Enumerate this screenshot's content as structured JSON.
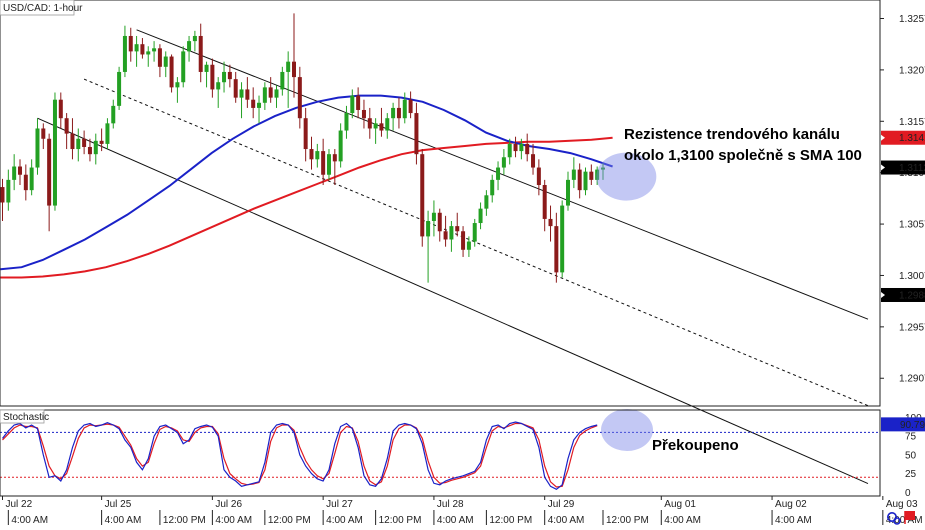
{
  "chart_data": [
    {
      "type": "candlestick",
      "title": "USD/CAD: 1-hour",
      "ylim": [
        1.288,
        1.3275
      ],
      "y_ticks": [
        "1.3257",
        "1.3207",
        "1.3157",
        "1.3107",
        "1.3057",
        "1.3007",
        "1.2957",
        "1.2907"
      ],
      "price_tags": [
        {
          "label": "1.3141",
          "value": 1.3141,
          "color": "#e11b22",
          "text_color": "#ffffff"
        },
        {
          "label": "1.3112",
          "value": 1.3112,
          "color": "#000000",
          "text_color": "#ffffff"
        },
        {
          "label": "1.2988",
          "value": 1.2988,
          "color": "#000000",
          "text_color": "#ffffff"
        }
      ],
      "candles": [
        [
          1.3093,
          1.3101,
          1.306,
          1.3078
        ],
        [
          1.3078,
          1.311,
          1.307,
          1.31
        ],
        [
          1.31,
          1.3125,
          1.309,
          1.3113
        ],
        [
          1.3113,
          1.312,
          1.3095,
          1.3105
        ],
        [
          1.3105,
          1.3115,
          1.308,
          1.309
        ],
        [
          1.309,
          1.312,
          1.3085,
          1.3112
        ],
        [
          1.3112,
          1.316,
          1.3105,
          1.315
        ],
        [
          1.315,
          1.3155,
          1.313,
          1.314
        ],
        [
          1.314,
          1.3145,
          1.305,
          1.3075
        ],
        [
          1.3075,
          1.3185,
          1.307,
          1.3178
        ],
        [
          1.3178,
          1.3185,
          1.315,
          1.316
        ],
        [
          1.316,
          1.3165,
          1.313,
          1.3145
        ],
        [
          1.3145,
          1.316,
          1.312,
          1.313
        ],
        [
          1.313,
          1.315,
          1.3118,
          1.314
        ],
        [
          1.314,
          1.3148,
          1.3125,
          1.3132
        ],
        [
          1.3132,
          1.314,
          1.3118,
          1.3125
        ],
        [
          1.3125,
          1.3145,
          1.3115,
          1.3138
        ],
        [
          1.3138,
          1.315,
          1.3128,
          1.3135
        ],
        [
          1.3135,
          1.316,
          1.313,
          1.3155
        ],
        [
          1.3155,
          1.3178,
          1.315,
          1.3172
        ],
        [
          1.3172,
          1.321,
          1.3168,
          1.3205
        ],
        [
          1.3205,
          1.325,
          1.32,
          1.324
        ],
        [
          1.324,
          1.3248,
          1.3215,
          1.3225
        ],
        [
          1.3225,
          1.324,
          1.321,
          1.3232
        ],
        [
          1.3232,
          1.3238,
          1.3218,
          1.3222
        ],
        [
          1.3222,
          1.323,
          1.321,
          1.3225
        ],
        [
          1.3225,
          1.3235,
          1.3215,
          1.3228
        ],
        [
          1.3228,
          1.3232,
          1.32,
          1.321
        ],
        [
          1.321,
          1.3225,
          1.32,
          1.322
        ],
        [
          1.322,
          1.3222,
          1.3185,
          1.319
        ],
        [
          1.319,
          1.32,
          1.3175,
          1.3195
        ],
        [
          1.3195,
          1.323,
          1.319,
          1.3225
        ],
        [
          1.3225,
          1.324,
          1.3215,
          1.3235
        ],
        [
          1.3235,
          1.3245,
          1.3225,
          1.324
        ],
        [
          1.324,
          1.3252,
          1.3195,
          1.3205
        ],
        [
          1.3205,
          1.3215,
          1.319,
          1.3212
        ],
        [
          1.3212,
          1.3218,
          1.318,
          1.3188
        ],
        [
          1.3188,
          1.32,
          1.317,
          1.3195
        ],
        [
          1.3195,
          1.3215,
          1.3185,
          1.3205
        ],
        [
          1.3205,
          1.3212,
          1.319,
          1.3198
        ],
        [
          1.3198,
          1.3205,
          1.3175,
          1.318
        ],
        [
          1.318,
          1.3195,
          1.316,
          1.3188
        ],
        [
          1.3188,
          1.32,
          1.317,
          1.3178
        ],
        [
          1.3178,
          1.319,
          1.316,
          1.317
        ],
        [
          1.317,
          1.3182,
          1.3155,
          1.3175
        ],
        [
          1.3175,
          1.3195,
          1.3168,
          1.319
        ],
        [
          1.319,
          1.32,
          1.3175,
          1.318
        ],
        [
          1.318,
          1.3192,
          1.317,
          1.3188
        ],
        [
          1.3188,
          1.321,
          1.3182,
          1.3205
        ],
        [
          1.3205,
          1.3225,
          1.317,
          1.3215
        ],
        [
          1.3215,
          1.3262,
          1.318,
          1.32
        ],
        [
          1.32,
          1.321,
          1.315,
          1.316
        ],
        [
          1.316,
          1.317,
          1.3118,
          1.313
        ],
        [
          1.313,
          1.3142,
          1.311,
          1.312
        ],
        [
          1.312,
          1.3135,
          1.3112,
          1.3128
        ],
        [
          1.3128,
          1.314,
          1.3095,
          1.3105
        ],
        [
          1.3105,
          1.313,
          1.31,
          1.3125
        ],
        [
          1.3125,
          1.313,
          1.3095,
          1.3118
        ],
        [
          1.3118,
          1.3155,
          1.3112,
          1.3148
        ],
        [
          1.3148,
          1.3172,
          1.314,
          1.3165
        ],
        [
          1.3165,
          1.3188,
          1.316,
          1.3182
        ],
        [
          1.3182,
          1.319,
          1.316,
          1.3168
        ],
        [
          1.3168,
          1.3178,
          1.315,
          1.316
        ],
        [
          1.316,
          1.317,
          1.314,
          1.315
        ],
        [
          1.315,
          1.316,
          1.3135,
          1.3155
        ],
        [
          1.3155,
          1.317,
          1.3142,
          1.3148
        ],
        [
          1.3148,
          1.3165,
          1.314,
          1.316
        ],
        [
          1.316,
          1.3175,
          1.3148,
          1.317
        ],
        [
          1.317,
          1.318,
          1.315,
          1.316
        ],
        [
          1.316,
          1.3185,
          1.3155,
          1.3178
        ],
        [
          1.3178,
          1.3186,
          1.316,
          1.3165
        ],
        [
          1.3165,
          1.3175,
          1.3115,
          1.3125
        ],
        [
          1.3125,
          1.313,
          1.3035,
          1.3045
        ],
        [
          1.3045,
          1.307,
          1.3,
          1.306
        ],
        [
          1.306,
          1.308,
          1.3045,
          1.3068
        ],
        [
          1.3068,
          1.3072,
          1.304,
          1.305
        ],
        [
          1.305,
          1.3065,
          1.3035,
          1.3042
        ],
        [
          1.3042,
          1.306,
          1.303,
          1.3055
        ],
        [
          1.3055,
          1.3068,
          1.3045,
          1.305
        ],
        [
          1.305,
          1.3055,
          1.3025,
          1.3032
        ],
        [
          1.3032,
          1.3045,
          1.3025,
          1.304
        ],
        [
          1.304,
          1.3062,
          1.3035,
          1.3058
        ],
        [
          1.3058,
          1.3078,
          1.3052,
          1.3072
        ],
        [
          1.3072,
          1.309,
          1.3065,
          1.3085
        ],
        [
          1.3085,
          1.3105,
          1.3078,
          1.31
        ],
        [
          1.31,
          1.3118,
          1.309,
          1.3112
        ],
        [
          1.3112,
          1.313,
          1.3105,
          1.3122
        ],
        [
          1.3122,
          1.314,
          1.3115,
          1.3135
        ],
        [
          1.3135,
          1.3142,
          1.3122,
          1.3128
        ],
        [
          1.3128,
          1.314,
          1.312,
          1.3135
        ],
        [
          1.3135,
          1.3145,
          1.3118,
          1.3125
        ],
        [
          1.3125,
          1.3135,
          1.3105,
          1.3112
        ],
        [
          1.3112,
          1.312,
          1.3085,
          1.3095
        ],
        [
          1.3095,
          1.31,
          1.305,
          1.3062
        ],
        [
          1.3062,
          1.3075,
          1.304,
          1.3055
        ],
        [
          1.3055,
          1.3068,
          1.3,
          1.301
        ],
        [
          1.301,
          1.308,
          1.3005,
          1.3075
        ],
        [
          1.3075,
          1.3108,
          1.307,
          1.31
        ],
        [
          1.31,
          1.3122,
          1.3092,
          1.311
        ],
        [
          1.311,
          1.3116,
          1.3082,
          1.309
        ],
        [
          1.309,
          1.3112,
          1.3085,
          1.3108
        ],
        [
          1.3108,
          1.3115,
          1.3095,
          1.31
        ],
        [
          1.31,
          1.3113,
          1.3095,
          1.311
        ],
        [
          1.311,
          1.3116,
          1.31,
          1.3112
        ]
      ],
      "sma_100": [
        1.3013,
        1.3015,
        1.3022,
        1.3032,
        1.3042,
        1.3054,
        1.3066,
        1.308,
        1.3094,
        1.311,
        1.3126,
        1.314,
        1.3152,
        1.3162,
        1.317,
        1.3176,
        1.318,
        1.3182,
        1.3182,
        1.318,
        1.3176,
        1.3168,
        1.3158,
        1.3146,
        1.3138,
        1.3133,
        1.313,
        1.3126,
        1.312,
        1.3113
      ],
      "sma_200": [
        1.3005,
        1.3005,
        1.3006,
        1.3008,
        1.3011,
        1.3015,
        1.3021,
        1.3028,
        1.3036,
        1.3045,
        1.3054,
        1.3063,
        1.3072,
        1.308,
        1.3088,
        1.3096,
        1.3104,
        1.3112,
        1.3119,
        1.3125,
        1.3129,
        1.3131,
        1.3133,
        1.3135,
        1.3136,
        1.3137,
        1.3137,
        1.3138,
        1.3139,
        1.3141
      ],
      "channel": {
        "upper": [
          [
            23,
            1.3246
          ],
          [
            105,
            1.3062
          ]
        ],
        "middle": [
          [
            14,
            1.3198
          ],
          [
            105,
            1.2983
          ]
        ],
        "lower": [
          [
            6,
            1.316
          ],
          [
            105,
            1.2913
          ]
        ]
      },
      "highlight": {
        "x": 101,
        "y": 1.3111,
        "label": "Rezistence trendového kanálu\nokolo 1,3100 společně s SMA 100"
      }
    },
    {
      "type": "line",
      "title": "Stochastic",
      "ylim": [
        -5,
        110
      ],
      "y_ticks": [
        "100",
        "75",
        "50",
        "25",
        "0"
      ],
      "value_tag": {
        "label": "90.79",
        "color": "#1a22c8",
        "text_color": "#ffffff"
      },
      "levels": [
        {
          "value": 80,
          "color": "#1a22c8"
        },
        {
          "value": 20,
          "color": "#e11b22"
        }
      ],
      "k_line": [
        72,
        82,
        90,
        92,
        86,
        90,
        85,
        50,
        20,
        22,
        15,
        30,
        60,
        82,
        90,
        92,
        88,
        90,
        93,
        90,
        85,
        70,
        60,
        40,
        30,
        45,
        75,
        88,
        90,
        85,
        80,
        65,
        70,
        85,
        88,
        90,
        87,
        75,
        30,
        20,
        15,
        8,
        10,
        12,
        14,
        40,
        80,
        90,
        92,
        90,
        80,
        50,
        35,
        25,
        18,
        15,
        30,
        65,
        88,
        92,
        85,
        60,
        22,
        10,
        8,
        18,
        45,
        82,
        90,
        92,
        90,
        85,
        65,
        30,
        12,
        10,
        15,
        18,
        20,
        22,
        25,
        28,
        40,
        70,
        88,
        90,
        85,
        92,
        94,
        92,
        88,
        84,
        60,
        20,
        8,
        4,
        10,
        45,
        70,
        80,
        85,
        88,
        90
      ],
      "d_line": [
        70,
        78,
        86,
        90,
        88,
        88,
        86,
        62,
        35,
        22,
        18,
        25,
        48,
        72,
        86,
        90,
        89,
        90,
        91,
        90,
        87,
        75,
        63,
        45,
        35,
        40,
        65,
        84,
        88,
        86,
        82,
        70,
        68,
        80,
        86,
        88,
        88,
        78,
        45,
        25,
        18,
        12,
        10,
        11,
        13,
        30,
        68,
        86,
        90,
        90,
        83,
        60,
        42,
        30,
        22,
        18,
        25,
        52,
        80,
        88,
        86,
        68,
        35,
        15,
        10,
        14,
        35,
        70,
        85,
        90,
        90,
        86,
        72,
        42,
        20,
        12,
        13,
        16,
        18,
        20,
        23,
        26,
        35,
        60,
        82,
        88,
        86,
        89,
        92,
        92,
        89,
        86,
        70,
        35,
        14,
        7,
        8,
        30,
        60,
        76,
        82,
        86,
        89
      ],
      "labels": {
        "overbought": "Překoupeno"
      }
    }
  ],
  "time_axis": {
    "dates": [
      {
        "x": 0,
        "label": "Jul 22"
      },
      {
        "x": 17,
        "label": "Jul 25"
      },
      {
        "x": 36,
        "label": "Jul 26"
      },
      {
        "x": 55,
        "label": "Jul 27"
      },
      {
        "x": 74,
        "label": "Jul 28"
      },
      {
        "x": 93,
        "label": "Jul 29"
      },
      {
        "x": 113,
        "label": "Aug 01"
      },
      {
        "x": 132,
        "label": "Aug 02"
      },
      {
        "x": 151,
        "label": "Aug 03"
      }
    ],
    "times": [
      {
        "x": 1,
        "label": "4:00 AM"
      },
      {
        "x": 17,
        "label": "4:00 AM"
      },
      {
        "x": 27,
        "label": "12:00 PM"
      },
      {
        "x": 36,
        "label": "4:00 AM"
      },
      {
        "x": 45,
        "label": "12:00 PM"
      },
      {
        "x": 55,
        "label": "4:00 AM"
      },
      {
        "x": 64,
        "label": "12:00 PM"
      },
      {
        "x": 74,
        "label": "4:00 AM"
      },
      {
        "x": 83,
        "label": "12:00 PM"
      },
      {
        "x": 93,
        "label": "4:00 AM"
      },
      {
        "x": 103,
        "label": "12:00 PM"
      },
      {
        "x": 113,
        "label": "4:00 AM"
      },
      {
        "x": 132,
        "label": "4:00 AM"
      },
      {
        "x": 151,
        "label": "4:00 AM"
      }
    ]
  },
  "colors": {
    "bull": "#23a023",
    "bear": "#8b1a1a",
    "sma100": "#1a22c8",
    "sma200": "#e11b22",
    "highlight": "#7b86e6"
  },
  "icons": [
    "refresh-icon",
    "flag-icon"
  ]
}
